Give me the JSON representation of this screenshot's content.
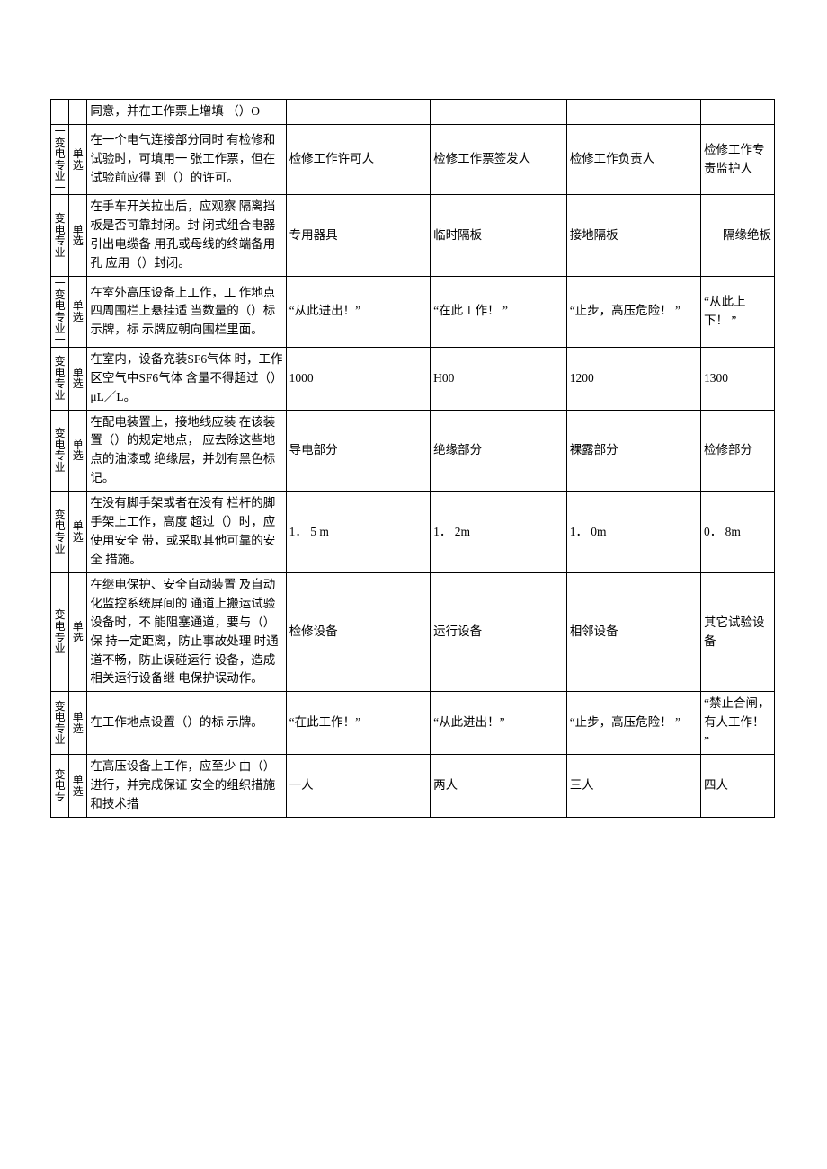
{
  "table": {
    "border_color": "#000000",
    "background_color": "#ffffff",
    "text_color": "#000000",
    "font_size_body": 13.5,
    "font_size_narrow": 12,
    "rows": [
      {
        "category": "",
        "type": "",
        "question": "同意，并在工作票上增填 （）O",
        "optA": "",
        "optB": "",
        "optC": "",
        "optD": ""
      },
      {
        "category": "一变电专业一",
        "type": "单选",
        "question": "在一个电气连接部分同时 有检修和试验时，可填用一 张工作票，但在试验前应得 到（）的许可。",
        "optA": "检修工作许可人",
        "optB": "检修工作票签发人",
        "optC": "检修工作负责人",
        "optD": "检修工作专责监护人"
      },
      {
        "category": "变电专业",
        "type": "单选",
        "question": "在手车开关拉出后，应观察 隔离挡板是否可靠封闭。封 闭式组合电器引出电缆备  用孔或母线的终端备用孔 应用（）封闭。",
        "optA": "专用器具",
        "optB": "临时隔板",
        "optC": "接地隔板",
        "optD": "隔缘绝板",
        "optD_align": "right"
      },
      {
        "category": "一变电专业一",
        "type": "单选",
        "question": "在室外高压设备上工作，工 作地点四周围栏上悬挂适  当数量的（）标示牌，标 示牌应朝向围栏里面。",
        "optA": "“从此进出！”",
        "optB": "“在此工作！ ”",
        "optC": "“止步，高压危险！ ”",
        "optD": "“从此上  下！ ”"
      },
      {
        "category": "变电专业",
        "type": "单选",
        "question": "在室内，设备充装SF6气体 时，工作区空气中SF6气体 含量不得超过（） μL／L。",
        "optA": "1000",
        "optB": "H00",
        "optC": "1200",
        "optD": "1300"
      },
      {
        "category": "变电专业",
        "type": "单选",
        "question": "在配电装置上，接地线应装 在该装置（）的规定地点， 应去除这些地点的油漆或 绝缘层，并划有黑色标记。",
        "optA": "导电部分",
        "optB": "绝缘部分",
        "optC": "裸露部分",
        "optD": "检修部分"
      },
      {
        "category": "变电专业",
        "type": "单选",
        "question": "在没有脚手架或者在没有  栏杆的脚手架上工作，高度 超过（）时，应使用安全 带，或采取其他可靠的安全 措施。",
        "optA": "1． 5 m",
        "optB": "1． 2m",
        "optC": "1． 0m",
        "optD": "0． 8m"
      },
      {
        "category": "变电专业",
        "type": "单选",
        "question": "在继电保护、安全自动装置 及自动化监控系统屏间的  通道上搬运试验设备时，不 能阻塞通道，要与（）保 持一定距离，防止事故处理 时通道不畅，防止误碰运行 设备，造成相关运行设备继 电保护误动作。",
        "optA": "检修设备",
        "optB": "运行设备",
        "optC": "相邻设备",
        "optD": "其它试验设备"
      },
      {
        "category": "变电专业",
        "type": "单选",
        "question": "在工作地点设置（）的标 示牌。",
        "optA": "“在此工作！”",
        "optB": "“从此进出！”",
        "optC": "“止步，高压危险！ ”",
        "optD": "“禁止合闸，有人工作！ ”"
      },
      {
        "category": "变电专",
        "type": "单选",
        "question": "在高压设备上工作，应至少 由（）进行，并完成保证 安全的组织措施和技术措",
        "optA": "一人",
        "optB": "两人",
        "optC": "三人",
        "optD": "四人"
      }
    ]
  }
}
